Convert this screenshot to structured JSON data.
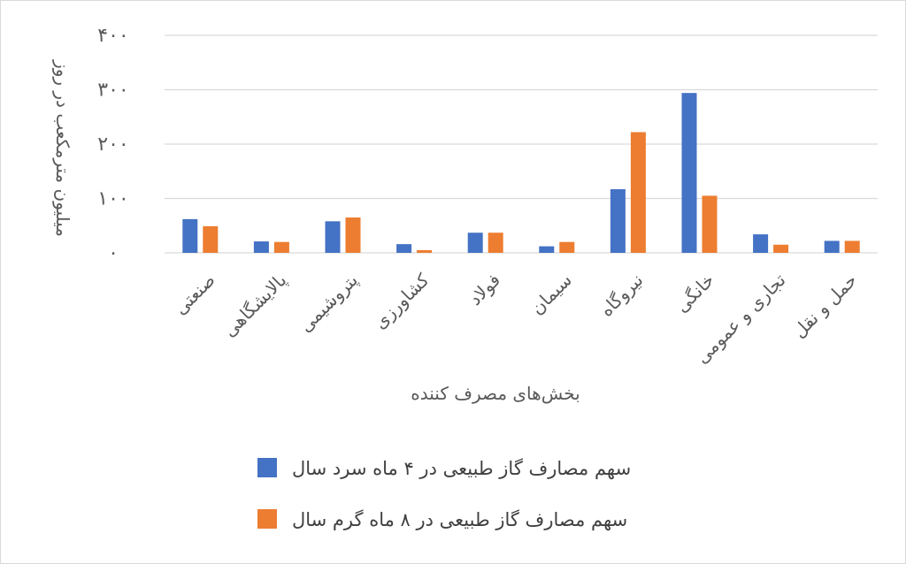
{
  "chart_data": {
    "type": "bar",
    "title": "",
    "xlabel": "بخش‌های مصرف کننده",
    "ylabel": "میلیون مترمکعب در روز",
    "ylim": [
      0,
      400
    ],
    "yticks": [
      0,
      100,
      200,
      300,
      400
    ],
    "ytick_labels": [
      "۰",
      "۱۰۰",
      "۲۰۰",
      "۳۰۰",
      "۴۰۰"
    ],
    "grid": true,
    "legend_position": "bottom",
    "categories": [
      "صنعتی",
      "پالایشگاهی",
      "پتروشیمی",
      "کشاورزی",
      "فولاد",
      "سیمان",
      "نیروگاه",
      "خانگی",
      "تجاری و عمومی",
      "حمل و نقل"
    ],
    "series": [
      {
        "name": "سهم مصارف گاز طبیعی در ۴ ماه سرد سال",
        "color": "#4472c4",
        "values": [
          62,
          21,
          58,
          16,
          37,
          12,
          117,
          294,
          34,
          22
        ]
      },
      {
        "name": "سهم مصارف گاز طبیعی در ۸ ماه گرم سال",
        "color": "#ed7d31",
        "values": [
          49,
          20,
          65,
          5,
          37,
          20,
          222,
          105,
          15,
          22
        ]
      }
    ]
  }
}
